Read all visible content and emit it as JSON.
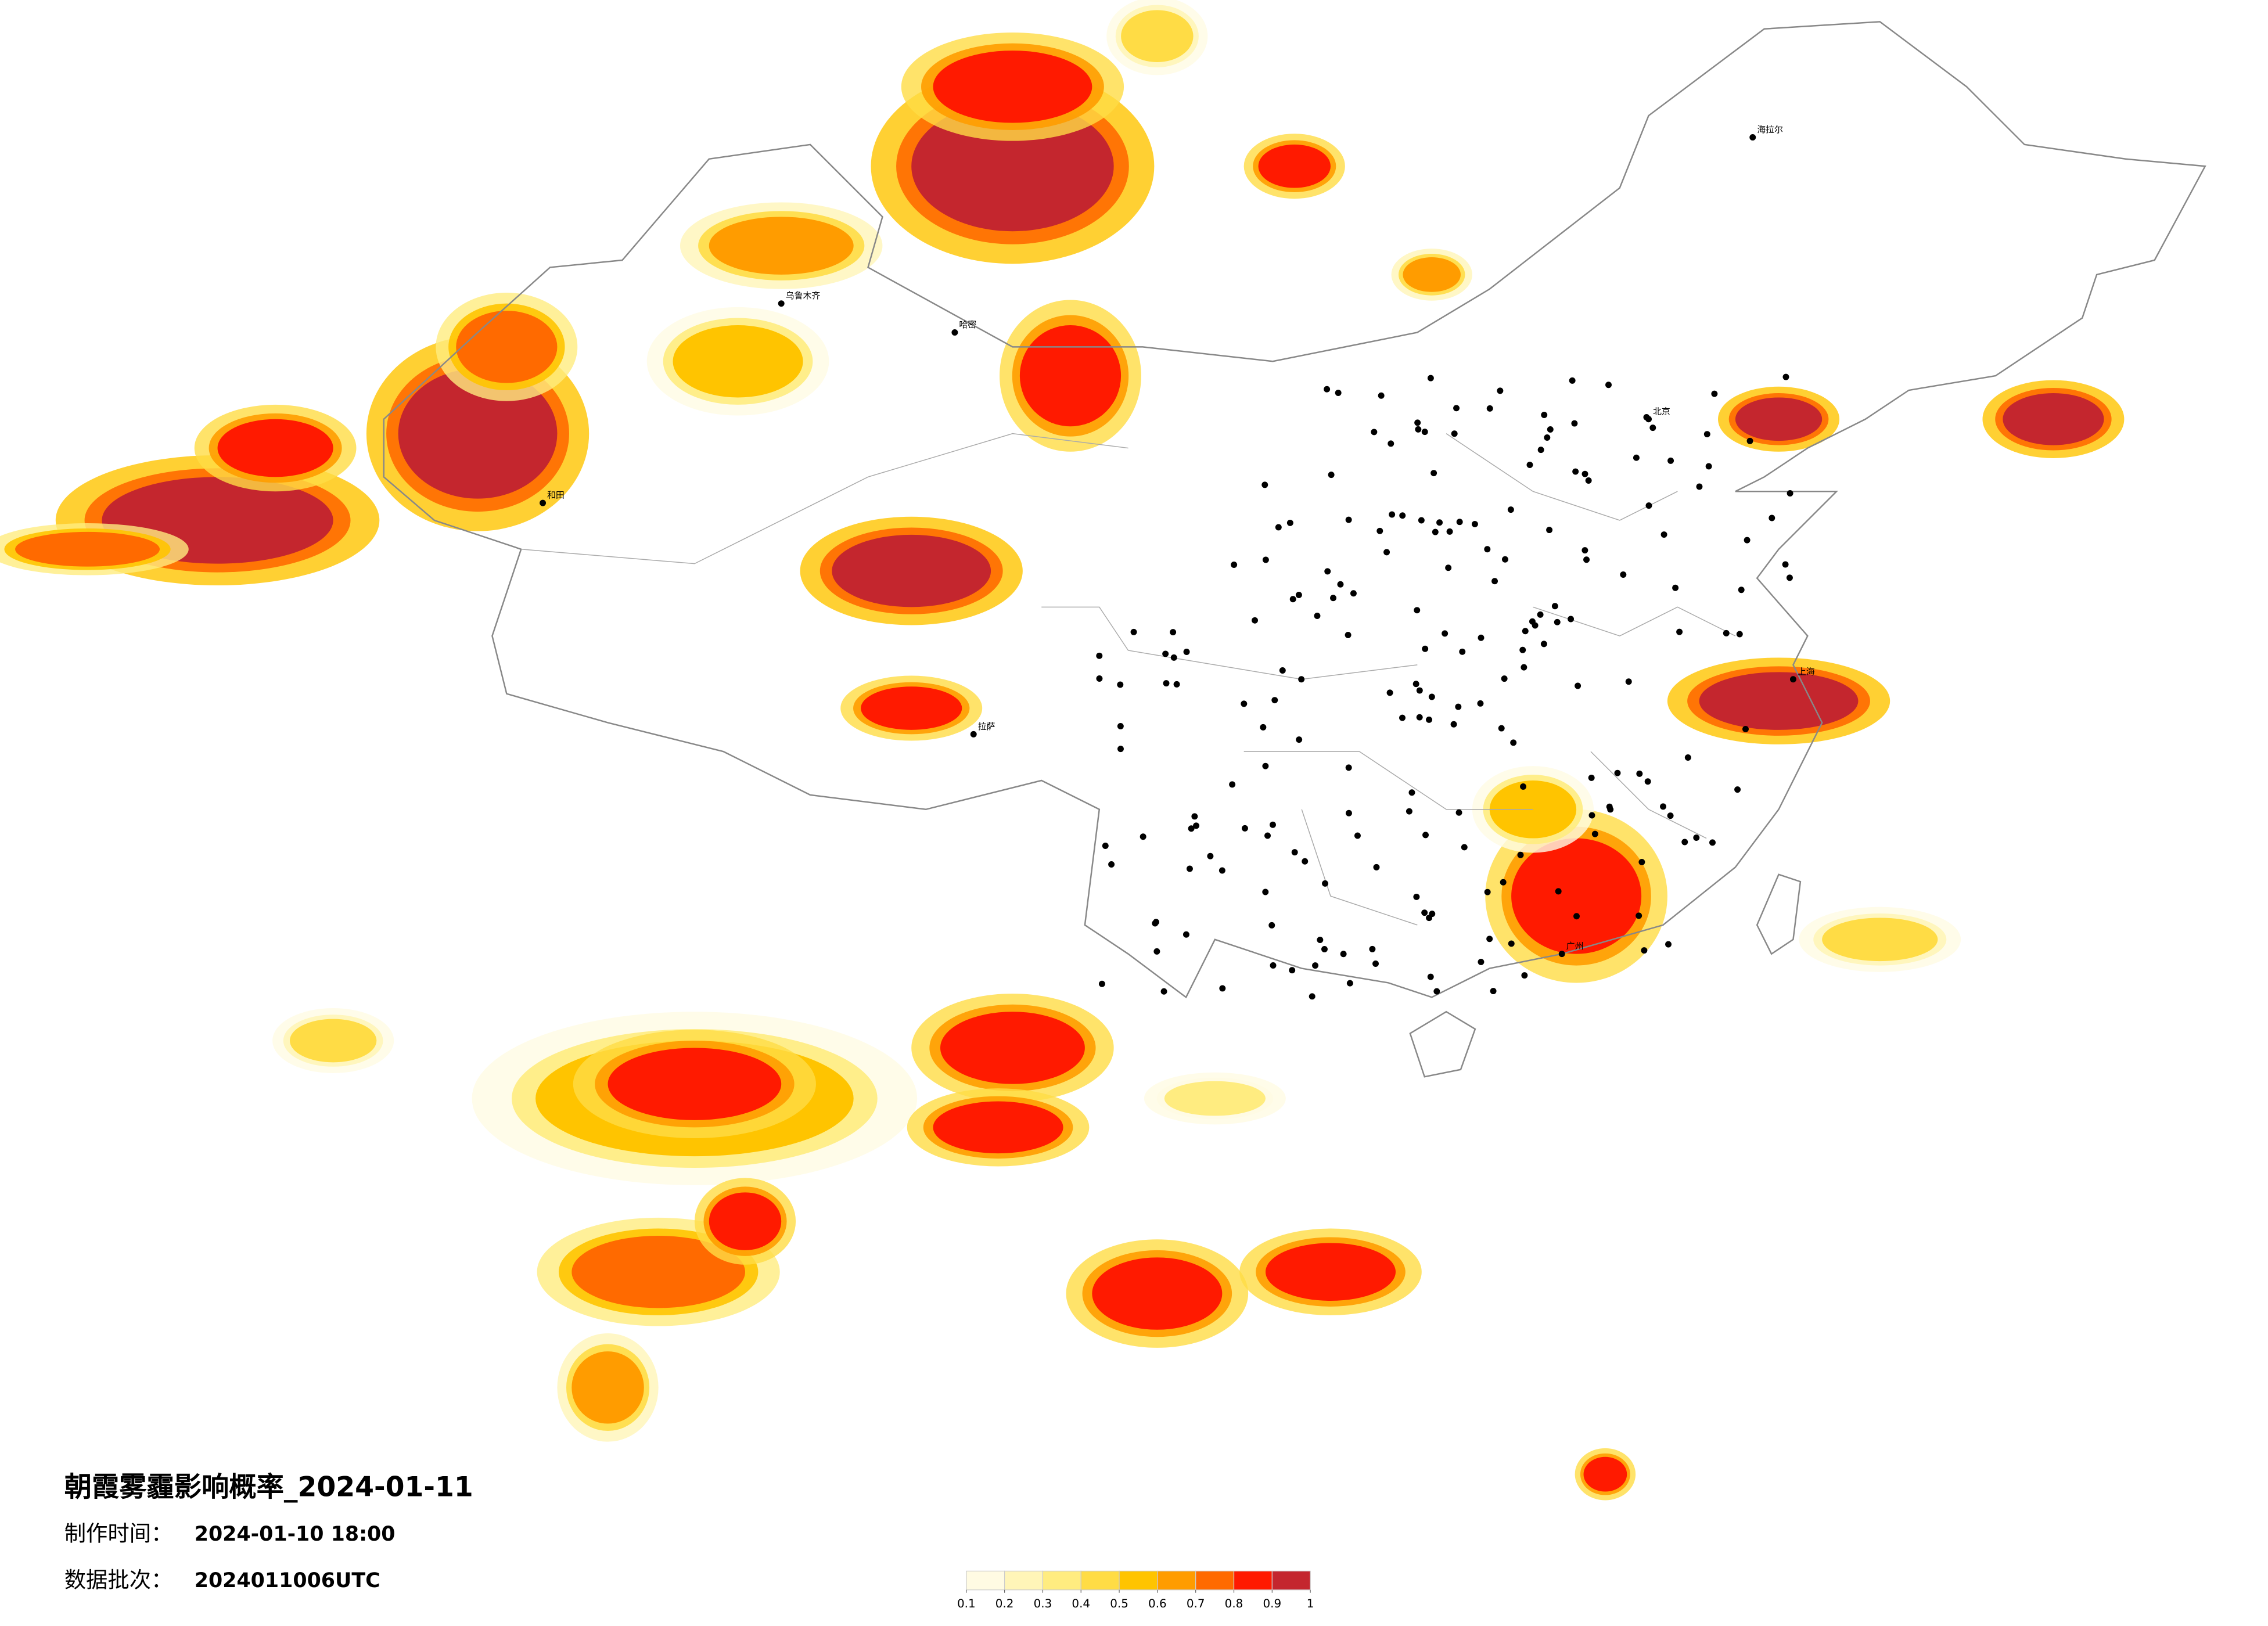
{
  "title": "朝霞雾霾影响概率_2024-01-11",
  "issue_time": {
    "label": "制作时间：",
    "value": "2024-01-10 18:00"
  },
  "batch": {
    "label": "数据批次：",
    "value": "2024011006UTC"
  },
  "legend": {
    "ticks": [
      0.1,
      0.2,
      0.3,
      0.4,
      0.5,
      0.6,
      0.7,
      0.8,
      0.9,
      1
    ],
    "colors": [
      "#fffbe3",
      "#fff5b8",
      "#ffec80",
      "#ffdc45",
      "#ffc400",
      "#ff9c00",
      "#ff6a00",
      "#ff1a00",
      "#c4262e"
    ]
  },
  "cities": [
    "乌鲁木齐",
    "哈密",
    "和田",
    "拉萨",
    "海拉尔",
    "北京",
    "上海",
    "广州"
  ]
}
